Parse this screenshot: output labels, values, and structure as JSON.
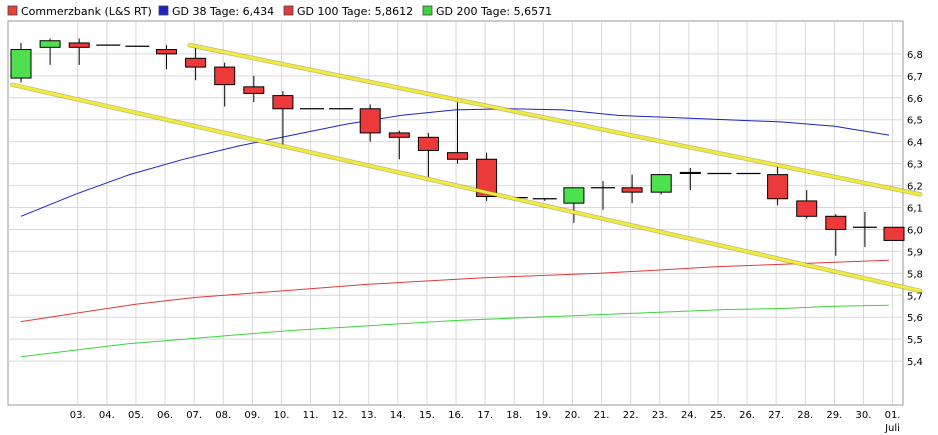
{
  "chart_data": {
    "type": "candlestick",
    "legend": [
      {
        "label": "Commerzbank (L&S RT)",
        "color": "#e8403a"
      },
      {
        "label": "GD 38 Tage: 6,434",
        "color": "#1c22c8"
      },
      {
        "label": "GD 100 Tage: 5,8612",
        "color": "#e03a3a"
      },
      {
        "label": "GD 200 Tage: 5,6571",
        "color": "#3ad63a"
      }
    ],
    "legend_position": "top-left",
    "grid": true,
    "ylim": [
      5.2,
      6.95
    ],
    "y_ticks": [
      "6,8",
      "6,7",
      "6,6",
      "6,5",
      "6,4",
      "6,3",
      "6,2",
      "6,1",
      "6,0",
      "5,9",
      "5,8",
      "5,7",
      "5,6",
      "5,5",
      "5,4"
    ],
    "y_tick_values": [
      6.8,
      6.7,
      6.6,
      6.5,
      6.4,
      6.3,
      6.2,
      6.1,
      6.0,
      5.9,
      5.8,
      5.7,
      5.6,
      5.5,
      5.4
    ],
    "x_labels": [
      "03.",
      "04.",
      "05.",
      "06.",
      "07.",
      "08.",
      "09.",
      "10.",
      "11.",
      "12.",
      "13.",
      "14.",
      "15.",
      "16.",
      "17.",
      "18.",
      "19.",
      "20.",
      "21.",
      "22.",
      "23.",
      "24.",
      "25.",
      "26.",
      "27.",
      "28.",
      "29.",
      "30.",
      "01."
    ],
    "x_month_label": "Juli",
    "up_color": "#4fe04f",
    "down_color": "#ec3a3a",
    "candles": [
      {
        "o": 6.69,
        "h": 6.85,
        "l": 6.67,
        "c": 6.82
      },
      {
        "o": 6.83,
        "h": 6.87,
        "l": 6.75,
        "c": 6.86
      },
      {
        "o": 6.85,
        "h": 6.87,
        "l": 6.75,
        "c": 6.83
      },
      {
        "o": 6.84,
        "h": 6.84,
        "l": 6.84,
        "c": 6.84
      },
      {
        "o": 6.835,
        "h": 6.835,
        "l": 6.835,
        "c": 6.835
      },
      {
        "o": 6.82,
        "h": 6.84,
        "l": 6.73,
        "c": 6.8
      },
      {
        "o": 6.78,
        "h": 6.83,
        "l": 6.68,
        "c": 6.74
      },
      {
        "o": 6.74,
        "h": 6.76,
        "l": 6.56,
        "c": 6.66
      },
      {
        "o": 6.65,
        "h": 6.7,
        "l": 6.58,
        "c": 6.62
      },
      {
        "o": 6.61,
        "h": 6.63,
        "l": 6.38,
        "c": 6.55
      },
      {
        "o": 6.55,
        "h": 6.55,
        "l": 6.55,
        "c": 6.55
      },
      {
        "o": 6.55,
        "h": 6.55,
        "l": 6.55,
        "c": 6.55
      },
      {
        "o": 6.55,
        "h": 6.57,
        "l": 6.4,
        "c": 6.44
      },
      {
        "o": 6.44,
        "h": 6.45,
        "l": 6.32,
        "c": 6.42
      },
      {
        "o": 6.42,
        "h": 6.44,
        "l": 6.24,
        "c": 6.36
      },
      {
        "o": 6.35,
        "h": 6.58,
        "l": 6.3,
        "c": 6.32
      },
      {
        "o": 6.32,
        "h": 6.35,
        "l": 6.13,
        "c": 6.15
      },
      {
        "o": 6.145,
        "h": 6.145,
        "l": 6.145,
        "c": 6.145
      },
      {
        "o": 6.14,
        "h": 6.14,
        "l": 6.13,
        "c": 6.14
      },
      {
        "o": 6.12,
        "h": 6.19,
        "l": 6.03,
        "c": 6.19
      },
      {
        "o": 6.19,
        "h": 6.22,
        "l": 6.09,
        "c": 6.19
      },
      {
        "o": 6.19,
        "h": 6.25,
        "l": 6.12,
        "c": 6.17
      },
      {
        "o": 6.17,
        "h": 6.25,
        "l": 6.16,
        "c": 6.25
      },
      {
        "o": 6.255,
        "h": 6.28,
        "l": 6.18,
        "c": 6.26
      },
      {
        "o": 6.255,
        "h": 6.255,
        "l": 6.255,
        "c": 6.255
      },
      {
        "o": 6.255,
        "h": 6.255,
        "l": 6.255,
        "c": 6.255
      },
      {
        "o": 6.25,
        "h": 6.29,
        "l": 6.11,
        "c": 6.14
      },
      {
        "o": 6.13,
        "h": 6.18,
        "l": 6.05,
        "c": 6.06
      },
      {
        "o": 6.06,
        "h": 6.07,
        "l": 5.88,
        "c": 6.0
      },
      {
        "o": 6.01,
        "h": 6.08,
        "l": 5.92,
        "c": 6.01
      },
      {
        "o": 6.01,
        "h": 6.01,
        "l": 5.95,
        "c": 5.95
      }
    ],
    "series": [
      {
        "values": [
          6.06,
          6.16,
          6.25,
          6.32,
          6.38,
          6.43,
          6.48,
          6.52,
          6.545,
          6.55,
          6.545,
          6.52,
          6.51,
          6.5,
          6.49,
          6.47,
          6.43
        ],
        "color": "#1c22c8"
      },
      {
        "values": [
          5.58,
          5.62,
          5.66,
          5.69,
          5.71,
          5.73,
          5.75,
          5.765,
          5.78,
          5.79,
          5.8,
          5.815,
          5.83,
          5.84,
          5.85,
          5.86
        ],
        "color": "#e03a3a"
      },
      {
        "values": [
          5.42,
          5.45,
          5.48,
          5.5,
          5.52,
          5.54,
          5.555,
          5.57,
          5.585,
          5.595,
          5.605,
          5.615,
          5.625,
          5.635,
          5.64,
          5.65,
          5.655
        ],
        "color": "#3ad63a"
      }
    ],
    "trend_lines": [
      {
        "from": [
          5.8,
          6.84
        ],
        "to": [
          30.9,
          6.16
        ],
        "color": "#f2ea3c"
      },
      {
        "from": [
          -0.3,
          6.66
        ],
        "to": [
          30.9,
          5.72
        ],
        "color": "#f2ea3c"
      }
    ]
  }
}
